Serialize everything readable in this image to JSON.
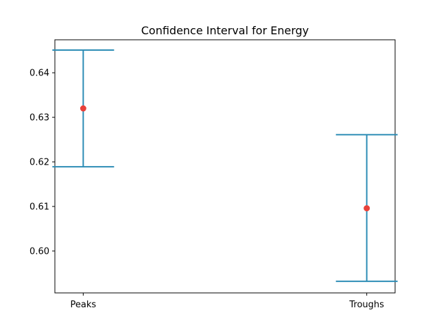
{
  "chart_data": {
    "type": "errorbar",
    "title": "Confidence Interval for Energy",
    "xlabel": "",
    "ylabel": "",
    "categories": [
      "Peaks",
      "Troughs"
    ],
    "means": [
      0.632,
      0.6096
    ],
    "ci_lower": [
      0.6189,
      0.5932
    ],
    "ci_upper": [
      0.6451,
      0.6261
    ],
    "ylim": [
      0.5906,
      0.6474
    ],
    "yticks": [
      0.6,
      0.61,
      0.62,
      0.63,
      0.64
    ],
    "ytick_labels": [
      "0.60",
      "0.61",
      "0.62",
      "0.63",
      "0.64"
    ],
    "grid": false,
    "colors": {
      "errorbar": "#2b8cb5",
      "marker": "#e8413a"
    }
  }
}
